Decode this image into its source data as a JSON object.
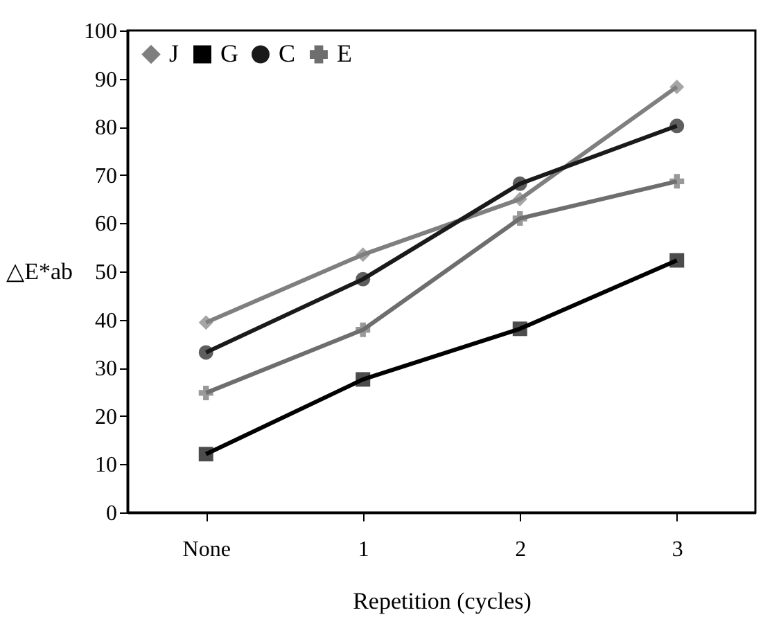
{
  "chart_data": {
    "type": "line",
    "xlabel": "Repetition (cycles)",
    "ylabel": "△E*ab",
    "categories": [
      "None",
      "1",
      "2",
      "3"
    ],
    "series": [
      {
        "name": "J",
        "color": "#7f7f7f",
        "marker": "diamond",
        "values": [
          39.4,
          53.5,
          65,
          88.3
        ]
      },
      {
        "name": "G",
        "color": "#000000",
        "marker": "square",
        "values": [
          12.1,
          27.6,
          38.1,
          52.3
        ]
      },
      {
        "name": "C",
        "color": "#1a1a1a",
        "marker": "circle",
        "values": [
          33.2,
          48.4,
          68.2,
          80.2
        ]
      },
      {
        "name": "E",
        "color": "#6e6e6e",
        "marker": "cross",
        "values": [
          24.8,
          37.9,
          61,
          68.7
        ]
      }
    ],
    "ylim": [
      0,
      100
    ],
    "yticks": [
      0,
      10,
      20,
      30,
      40,
      50,
      60,
      70,
      80,
      90,
      100
    ],
    "grid": false,
    "legend": "top left"
  }
}
